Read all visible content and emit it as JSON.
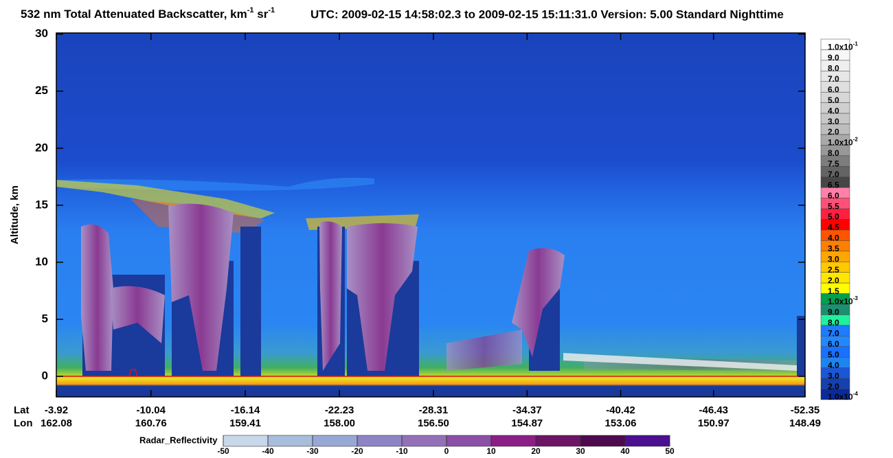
{
  "chart_data": {
    "type": "curtain",
    "title_parts": [
      {
        "text": "532 nm Total Attenuated Backscatter, km"
      },
      {
        "sup": "-1"
      },
      {
        "text": " sr"
      },
      {
        "sup": "-1"
      }
    ],
    "subtitle": "UTC:  2009-02-15 14:58:02.3  to  2009-02-15 15:11:31.0    Version: 5.00  Standard  Nighttime",
    "y_label": "Altitude, km",
    "ylim": [
      -1.8,
      30.1
    ],
    "yticks": [
      0,
      5,
      10,
      15,
      20,
      25,
      30
    ],
    "x_row_labels": [
      "Lat",
      "Lon"
    ],
    "xlim": [
      -3.92,
      -52.35
    ],
    "lat": [
      -3.92,
      -10.04,
      -16.14,
      -22.23,
      -28.31,
      -34.37,
      -40.42,
      -46.43,
      -52.35
    ],
    "lon": [
      162.08,
      160.76,
      159.41,
      {
        "value": 158,
        "label": "158.00"
      },
      {
        "value": 156.5,
        "label": "156.50"
      },
      154.87,
      153.06,
      150.97,
      148.49
    ],
    "colorbar": {
      "labels": [
        {
          "base": "1.0x10",
          "exponent": "-1"
        },
        "9.0",
        "8.0",
        "7.0",
        "6.0",
        "5.0",
        "4.0",
        "3.0",
        "2.0",
        {
          "base": "1.0x10",
          "exponent": "-2"
        },
        "8.0",
        "7.5",
        "7.0",
        "6.5",
        "6.0",
        "5.5",
        "5.0",
        "4.5",
        "4.0",
        "3.5",
        "3.0",
        "2.5",
        "2.0",
        "1.5",
        {
          "base": "1.0x10",
          "exponent": "-3"
        },
        "9.0",
        "8.0",
        "7.0",
        "6.0",
        "5.0",
        "4.0",
        "3.0",
        "2.0",
        {
          "base": "1.0x10",
          "exponent": "-4"
        }
      ],
      "colors": [
        "#ffffff",
        "#f7f7f7",
        "#efefef",
        "#e7e7e7",
        "#dfdfdf",
        "#d7d7d7",
        "#cfcfcf",
        "#c7c7c7",
        "#bdbdbd",
        "#a9a9a9",
        "#989898",
        "#7d7d7d",
        "#646464",
        "#464646",
        "#ff80a8",
        "#ff5078",
        "#ff2040",
        "#ff0000",
        "#ff5400",
        "#ff8000",
        "#ffa600",
        "#ffc800",
        "#ffe600",
        "#ffff00",
        "#00a050",
        "#1a9070",
        "#20f0a0",
        "#1e7cff",
        "#2288ff",
        "#1a70ff",
        "#1f84f0",
        "#1a56d6",
        "#1440b0",
        "#0a2a9a"
      ]
    },
    "radar": {
      "label": "Radar_Reflectivity",
      "ticks": [
        -50,
        -40,
        -30,
        -20,
        -10,
        0,
        10,
        20,
        30,
        40,
        50
      ],
      "colors": [
        "#c8d8ea",
        "#a8bcdc",
        "#98a8d6",
        "#8c84c4",
        "#9470b8",
        "#8c4fa6",
        "#8a1f86",
        "#6c1466",
        "#4e0a4e",
        "#4a1090"
      ]
    }
  }
}
